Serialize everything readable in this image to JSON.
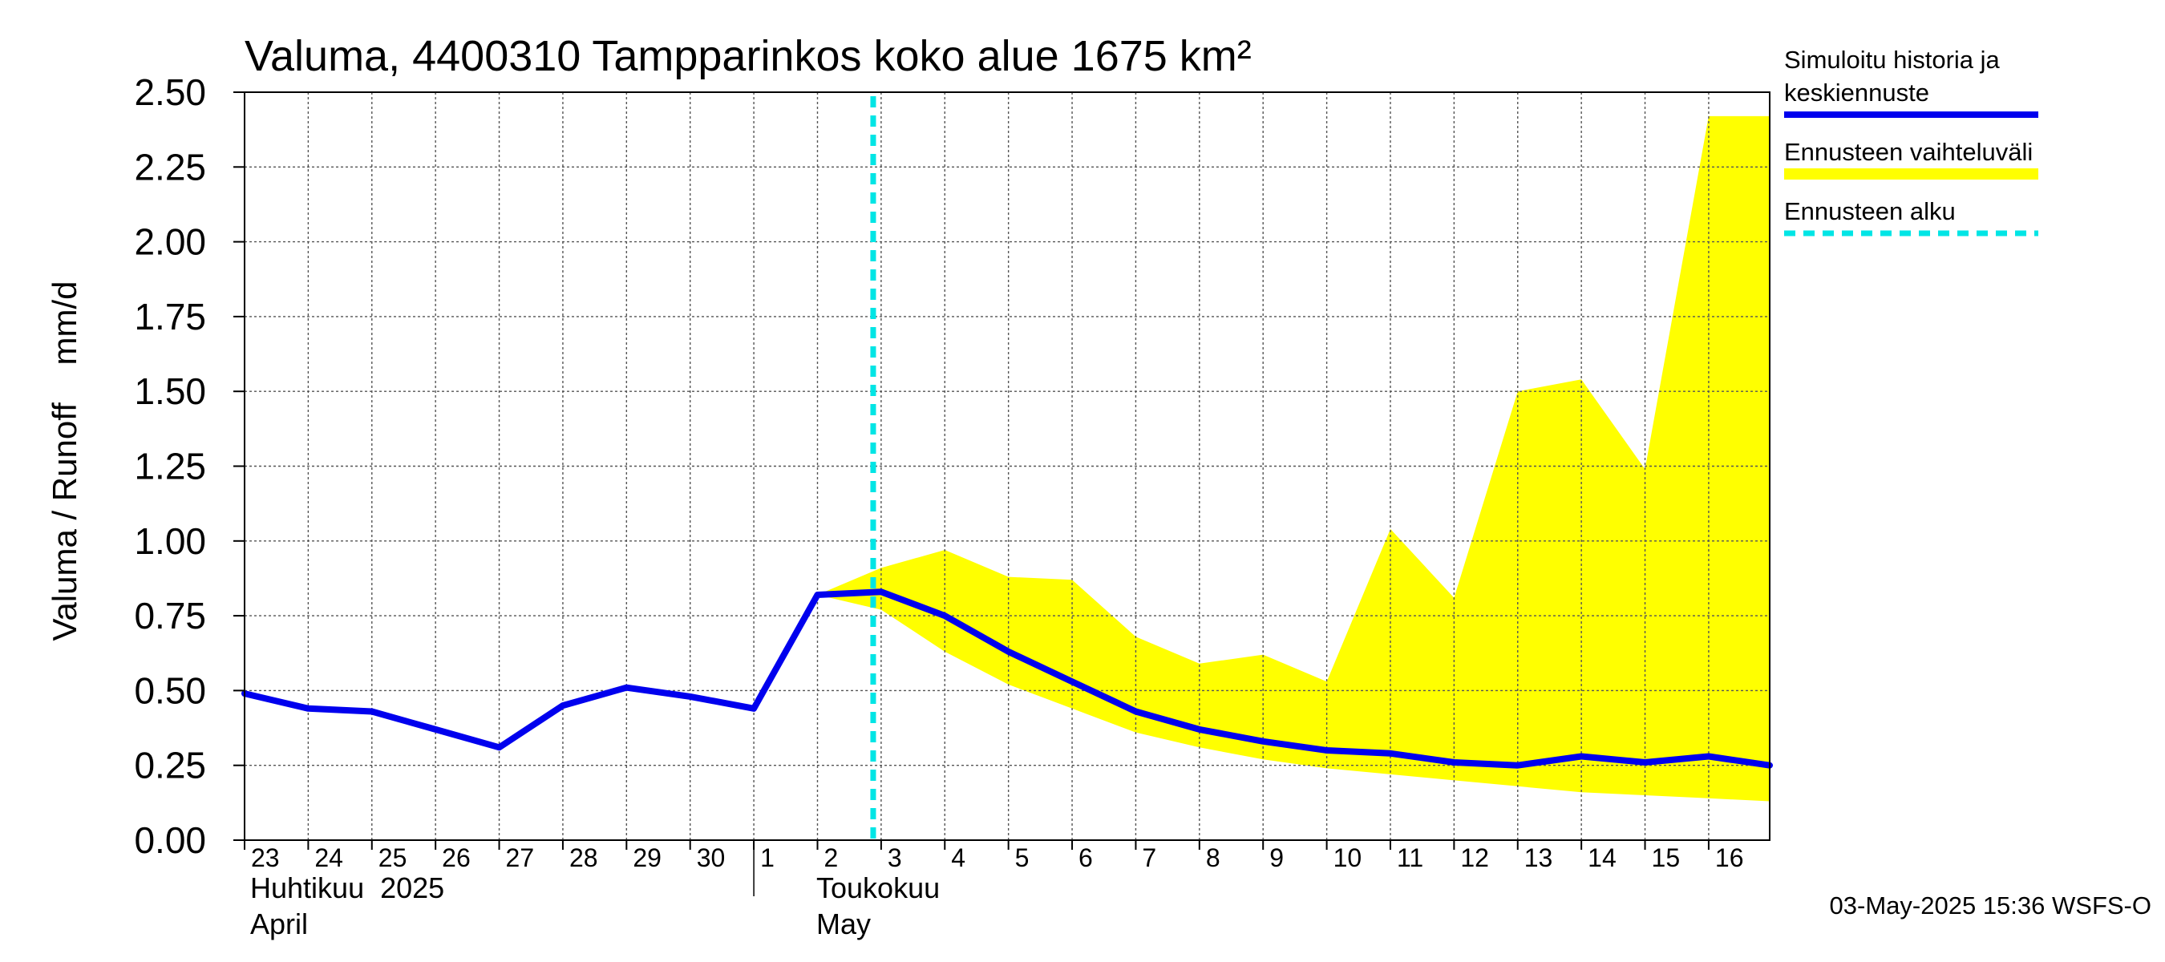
{
  "chart_data": {
    "type": "line",
    "title": "Valuma, 4400310 Tampparinkos koko alue 1675 km²",
    "ylabel": "Valuma / Runoff    mm/d",
    "ylim": [
      0,
      2.5
    ],
    "yticks": [
      "0.00",
      "0.25",
      "0.50",
      "0.75",
      "1.00",
      "1.25",
      "1.50",
      "1.75",
      "2.00",
      "2.25",
      "2.50"
    ],
    "xlim": [
      "2025-04-23",
      "2025-05-16T23:00"
    ],
    "xtick_labels": [
      "23",
      "24",
      "25",
      "26",
      "27",
      "28",
      "29",
      "30",
      "1",
      "2",
      "3",
      "4",
      "5",
      "6",
      "7",
      "8",
      "9",
      "10",
      "11",
      "12",
      "13",
      "14",
      "15",
      "16"
    ],
    "month_labels": [
      {
        "line1": "Huhtikuu  2025",
        "line2": "April"
      },
      {
        "line1": "Toukokuu",
        "line2": "May"
      }
    ],
    "grid": true,
    "legend_position": "right",
    "series": [
      {
        "name": "Simuloitu historia ja keskiennuste",
        "color": "#0000ee",
        "x": [
          "2025-04-23",
          "2025-04-24",
          "2025-04-25",
          "2025-04-26",
          "2025-04-27",
          "2025-04-28",
          "2025-04-29",
          "2025-04-30",
          "2025-05-01",
          "2025-05-02",
          "2025-05-03",
          "2025-05-04",
          "2025-05-05",
          "2025-05-06",
          "2025-05-07",
          "2025-05-08",
          "2025-05-09",
          "2025-05-10",
          "2025-05-11",
          "2025-05-12",
          "2025-05-13",
          "2025-05-14",
          "2025-05-15",
          "2025-05-16",
          "2025-05-16T23:00"
        ],
        "values": [
          0.49,
          0.44,
          0.43,
          0.37,
          0.31,
          0.45,
          0.51,
          0.48,
          0.44,
          0.82,
          0.83,
          0.75,
          0.63,
          0.53,
          0.43,
          0.37,
          0.33,
          0.3,
          0.29,
          0.26,
          0.25,
          0.28,
          0.26,
          0.28,
          0.25
        ]
      },
      {
        "name": "Ennusteen vaihteluväli",
        "color": "#ffff00",
        "x": [
          "2025-05-02",
          "2025-05-03",
          "2025-05-04",
          "2025-05-05",
          "2025-05-06",
          "2025-05-07",
          "2025-05-08",
          "2025-05-09",
          "2025-05-10",
          "2025-05-11",
          "2025-05-12",
          "2025-05-13",
          "2025-05-14",
          "2025-05-15",
          "2025-05-16",
          "2025-05-16T23:00"
        ],
        "upper": [
          0.82,
          0.91,
          0.97,
          0.88,
          0.87,
          0.68,
          0.59,
          0.62,
          0.53,
          1.04,
          0.81,
          1.5,
          1.54,
          1.24,
          2.42,
          2.42
        ],
        "lower": [
          0.82,
          0.77,
          0.63,
          0.52,
          0.44,
          0.36,
          0.31,
          0.27,
          0.24,
          0.22,
          0.2,
          0.18,
          0.16,
          0.15,
          0.14,
          0.13
        ]
      },
      {
        "name": "Ennusteen alku",
        "color": "#00e5e5",
        "x": [
          "2025-05-02T21:00"
        ]
      }
    ]
  },
  "legend": {
    "items": [
      {
        "line1": "Simuloitu historia ja",
        "line2": "keskiennuste",
        "color": "#0000ee",
        "style": "solid"
      },
      {
        "line1": "Ennusteen vaihteluväli",
        "line2": "",
        "color": "#ffff00",
        "style": "band"
      },
      {
        "line1": "Ennusteen alku",
        "line2": "",
        "color": "#00e5e5",
        "style": "dashed"
      }
    ]
  },
  "footer": {
    "timestamp": "03-May-2025 15:36 WSFS-O"
  }
}
